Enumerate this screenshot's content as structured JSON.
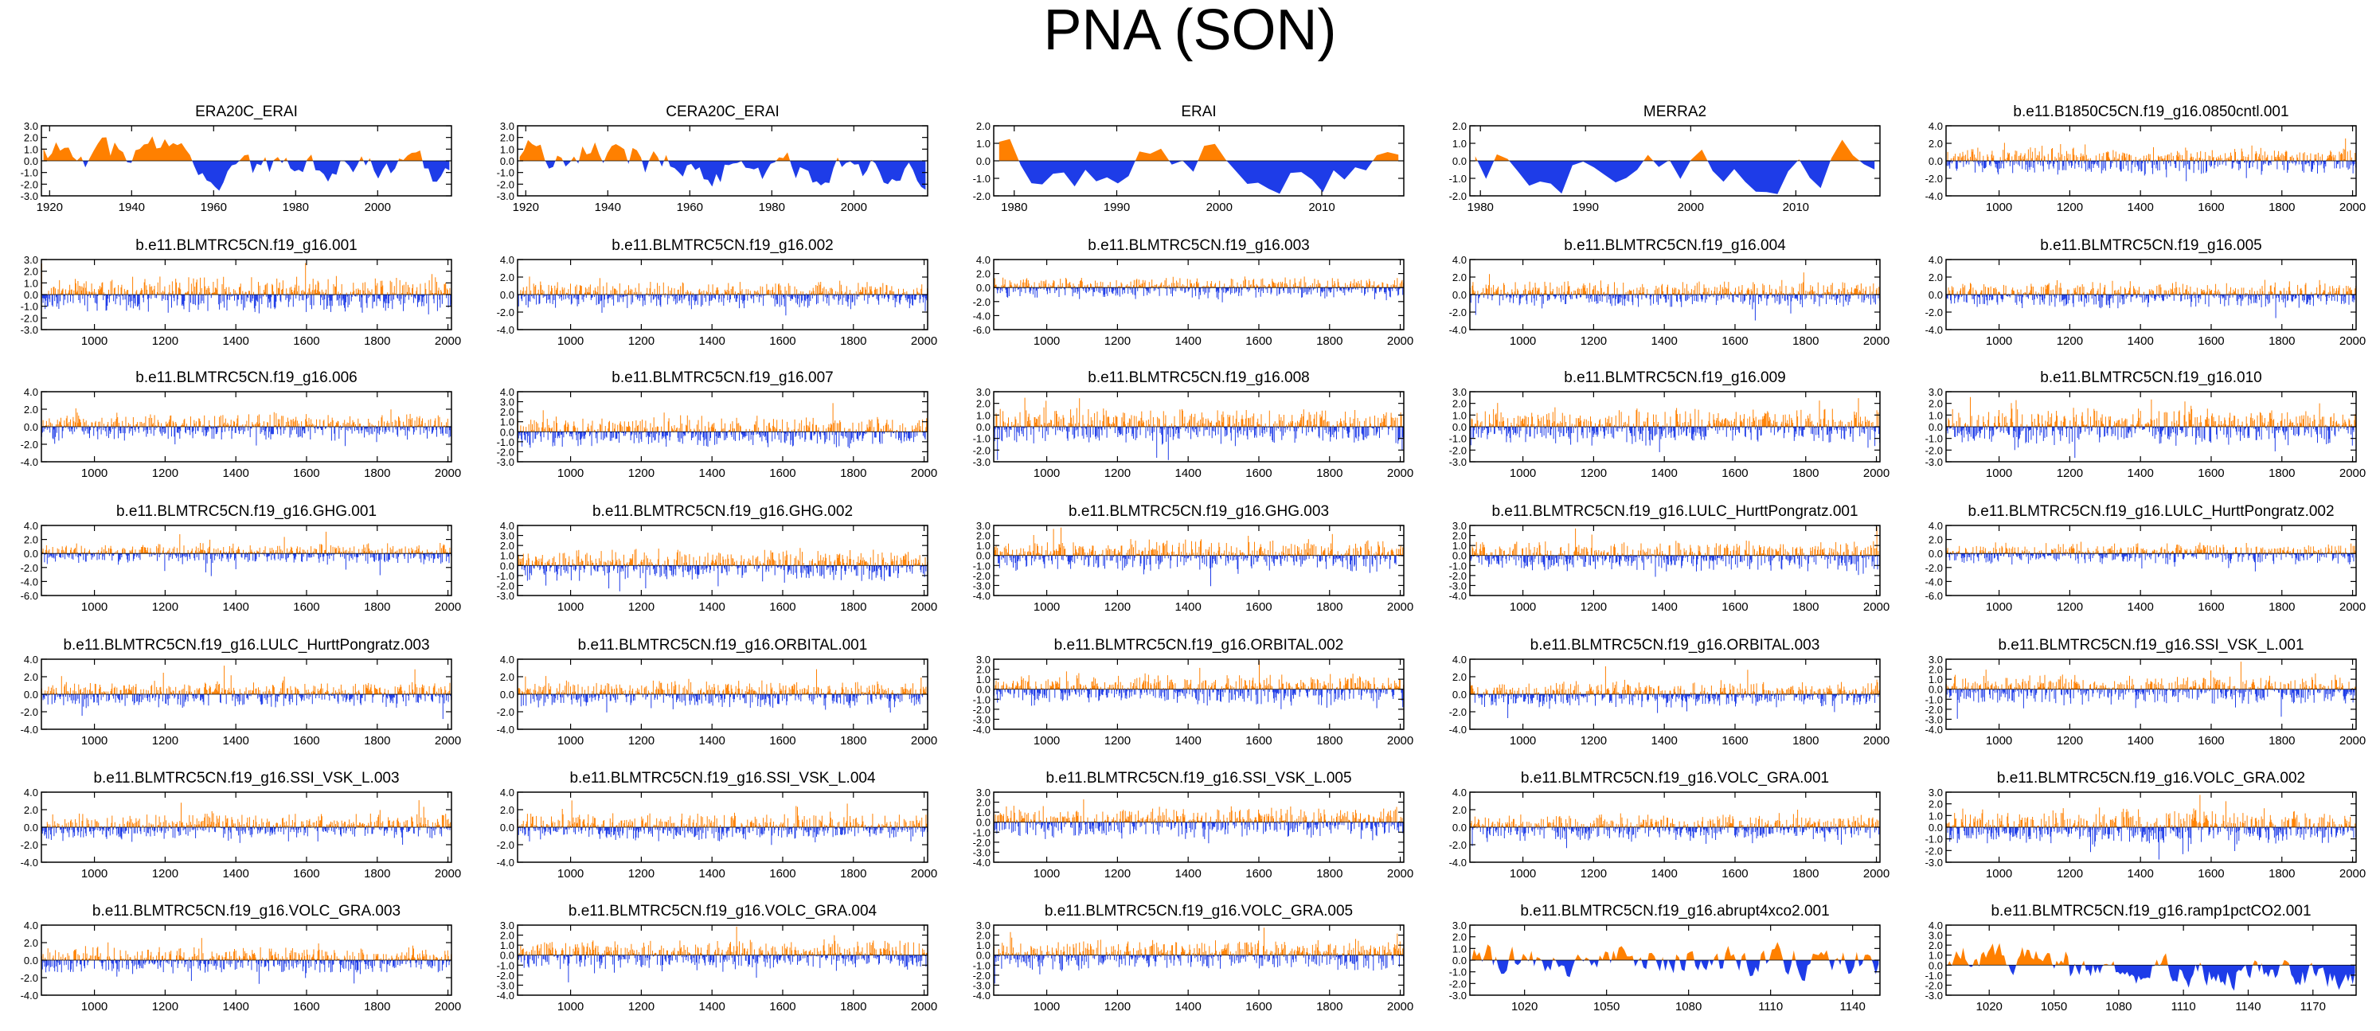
{
  "figure": {
    "title": "PNA (SON)",
    "colors": {
      "positive": "#ff8000",
      "negative": "#1e3ce8",
      "axis": "#000000",
      "zero_line": "#000000"
    }
  },
  "chart_data": [
    {
      "type": "area",
      "title": "ERA20C_ERAI",
      "xlim": [
        1918,
        2018
      ],
      "xticks": [
        1920,
        1940,
        1960,
        1980,
        2000
      ],
      "ylim": [
        -3,
        3
      ],
      "yticks": [
        "3.0",
        "2.0",
        "1.0",
        "0.0",
        "-1.0",
        "-2.0",
        "-3.0"
      ],
      "n_points": 98,
      "style": "smooth",
      "amplitude": 1.0,
      "trend": -1.4
    },
    {
      "type": "area",
      "title": "CERA20C_ERAI",
      "xlim": [
        1918,
        2018
      ],
      "xticks": [
        1920,
        1940,
        1960,
        1980,
        2000
      ],
      "ylim": [
        -3,
        3
      ],
      "yticks": [
        "3.0",
        "2.0",
        "1.0",
        "0.0",
        "-1.0",
        "-2.0",
        "-3.0"
      ],
      "n_points": 98,
      "style": "smooth",
      "amplitude": 1.0,
      "trend": -1.3
    },
    {
      "type": "area",
      "title": "ERAI",
      "xlim": [
        1978,
        2018
      ],
      "xticks": [
        1980,
        1990,
        2000,
        2010
      ],
      "ylim": [
        -2,
        2
      ],
      "yticks": [
        "2.0",
        "1.0",
        "0.0",
        "-1.0",
        "-2.0"
      ],
      "n_points": 38,
      "style": "smooth",
      "amplitude": 1.1,
      "trend": 0
    },
    {
      "type": "area",
      "title": "MERRA2",
      "xlim": [
        1979,
        2018
      ],
      "xticks": [
        1980,
        1990,
        2000,
        2010
      ],
      "ylim": [
        -2,
        2
      ],
      "yticks": [
        "2.0",
        "1.0",
        "0.0",
        "-1.0",
        "-2.0"
      ],
      "n_points": 38,
      "style": "smooth",
      "amplitude": 1.1,
      "trend": 0
    },
    {
      "type": "area",
      "title": "b.e11.B1850C5CN.f19_g16.0850cntl.001",
      "xlim": [
        850,
        2010
      ],
      "xticks": [
        1000,
        1200,
        1400,
        1600,
        1800,
        2000
      ],
      "ylim": [
        -4,
        4
      ],
      "yticks": [
        "4.0",
        "2.0",
        "0.0",
        "-2.0",
        "-4.0"
      ],
      "n_points": 600,
      "style": "dense",
      "amplitude": 1.0,
      "trend": 0
    },
    {
      "type": "area",
      "title": "b.e11.BLMTRC5CN.f19_g16.001",
      "xlim": [
        850,
        2010
      ],
      "xticks": [
        1000,
        1200,
        1400,
        1600,
        1800,
        2000
      ],
      "ylim": [
        -3,
        3
      ],
      "yticks": [
        "3.0",
        "2.0",
        "1.0",
        "0.0",
        "-1.0",
        "-2.0",
        "-3.0"
      ],
      "n_points": 600,
      "style": "dense",
      "amplitude": 1.0,
      "trend": 0
    },
    {
      "type": "area",
      "title": "b.e11.BLMTRC5CN.f19_g16.002",
      "xlim": [
        850,
        2010
      ],
      "xticks": [
        1000,
        1200,
        1400,
        1600,
        1800,
        2000
      ],
      "ylim": [
        -4,
        4
      ],
      "yticks": [
        "4.0",
        "2.0",
        "0.0",
        "-2.0",
        "-4.0"
      ],
      "n_points": 600,
      "style": "dense",
      "amplitude": 1.0,
      "trend": 0
    },
    {
      "type": "area",
      "title": "b.e11.BLMTRC5CN.f19_g16.003",
      "xlim": [
        850,
        2010
      ],
      "xticks": [
        1000,
        1200,
        1400,
        1600,
        1800,
        2000
      ],
      "ylim": [
        -6,
        4
      ],
      "yticks": [
        "4.0",
        "2.0",
        "0.0",
        "-2.0",
        "-4.0",
        "-6.0"
      ],
      "n_points": 600,
      "style": "dense",
      "amplitude": 1.0,
      "trend": 0
    },
    {
      "type": "area",
      "title": "b.e11.BLMTRC5CN.f19_g16.004",
      "xlim": [
        850,
        2010
      ],
      "xticks": [
        1000,
        1200,
        1400,
        1600,
        1800,
        2000
      ],
      "ylim": [
        -4,
        4
      ],
      "yticks": [
        "4.0",
        "2.0",
        "0.0",
        "-2.0",
        "-4.0"
      ],
      "n_points": 600,
      "style": "dense",
      "amplitude": 1.0,
      "trend": 0
    },
    {
      "type": "area",
      "title": "b.e11.BLMTRC5CN.f19_g16.005",
      "xlim": [
        850,
        2010
      ],
      "xticks": [
        1000,
        1200,
        1400,
        1600,
        1800,
        2000
      ],
      "ylim": [
        -4,
        4
      ],
      "yticks": [
        "4.0",
        "2.0",
        "0.0",
        "-2.0",
        "-4.0"
      ],
      "n_points": 600,
      "style": "dense",
      "amplitude": 1.0,
      "trend": 0
    },
    {
      "type": "area",
      "title": "b.e11.BLMTRC5CN.f19_g16.006",
      "xlim": [
        850,
        2010
      ],
      "xticks": [
        1000,
        1200,
        1400,
        1600,
        1800,
        2000
      ],
      "ylim": [
        -4,
        4
      ],
      "yticks": [
        "4.0",
        "2.0",
        "0.0",
        "-2.0",
        "-4.0"
      ],
      "n_points": 600,
      "style": "dense",
      "amplitude": 1.0,
      "trend": 0
    },
    {
      "type": "area",
      "title": "b.e11.BLMTRC5CN.f19_g16.007",
      "xlim": [
        850,
        2010
      ],
      "xticks": [
        1000,
        1200,
        1400,
        1600,
        1800,
        2000
      ],
      "ylim": [
        -3,
        4
      ],
      "yticks": [
        "4.0",
        "3.0",
        "2.0",
        "1.0",
        "0.0",
        "-1.0",
        "-2.0",
        "-3.0"
      ],
      "n_points": 600,
      "style": "dense",
      "amplitude": 1.0,
      "trend": 0
    },
    {
      "type": "area",
      "title": "b.e11.BLMTRC5CN.f19_g16.008",
      "xlim": [
        850,
        2010
      ],
      "xticks": [
        1000,
        1200,
        1400,
        1600,
        1800,
        2000
      ],
      "ylim": [
        -3,
        3
      ],
      "yticks": [
        "3.0",
        "2.0",
        "1.0",
        "0.0",
        "-1.0",
        "-2.0",
        "-3.0"
      ],
      "n_points": 600,
      "style": "dense",
      "amplitude": 1.0,
      "trend": 0
    },
    {
      "type": "area",
      "title": "b.e11.BLMTRC5CN.f19_g16.009",
      "xlim": [
        850,
        2010
      ],
      "xticks": [
        1000,
        1200,
        1400,
        1600,
        1800,
        2000
      ],
      "ylim": [
        -3,
        3
      ],
      "yticks": [
        "3.0",
        "2.0",
        "1.0",
        "0.0",
        "-1.0",
        "-2.0",
        "-3.0"
      ],
      "n_points": 600,
      "style": "dense",
      "amplitude": 1.0,
      "trend": 0
    },
    {
      "type": "area",
      "title": "b.e11.BLMTRC5CN.f19_g16.010",
      "xlim": [
        850,
        2010
      ],
      "xticks": [
        1000,
        1200,
        1400,
        1600,
        1800,
        2000
      ],
      "ylim": [
        -3,
        3
      ],
      "yticks": [
        "3.0",
        "2.0",
        "1.0",
        "0.0",
        "-1.0",
        "-2.0",
        "-3.0"
      ],
      "n_points": 600,
      "style": "dense",
      "amplitude": 1.0,
      "trend": 0
    },
    {
      "type": "area",
      "title": "b.e11.BLMTRC5CN.f19_g16.GHG.001",
      "xlim": [
        850,
        2010
      ],
      "xticks": [
        1000,
        1200,
        1400,
        1600,
        1800,
        2000
      ],
      "ylim": [
        -6,
        4
      ],
      "yticks": [
        "4.0",
        "2.0",
        "0.0",
        "-2.0",
        "-4.0",
        "-6.0"
      ],
      "n_points": 600,
      "style": "dense",
      "amplitude": 1.0,
      "trend": 0
    },
    {
      "type": "area",
      "title": "b.e11.BLMTRC5CN.f19_g16.GHG.002",
      "xlim": [
        850,
        2010
      ],
      "xticks": [
        1000,
        1200,
        1400,
        1600,
        1800,
        2000
      ],
      "ylim": [
        -3,
        4
      ],
      "yticks": [
        "4.0",
        "3.0",
        "2.0",
        "1.0",
        "0.0",
        "-1.0",
        "-2.0",
        "-3.0"
      ],
      "n_points": 600,
      "style": "dense",
      "amplitude": 1.0,
      "trend": 0
    },
    {
      "type": "area",
      "title": "b.e11.BLMTRC5CN.f19_g16.GHG.003",
      "xlim": [
        850,
        2010
      ],
      "xticks": [
        1000,
        1200,
        1400,
        1600,
        1800,
        2000
      ],
      "ylim": [
        -4,
        3
      ],
      "yticks": [
        "3.0",
        "2.0",
        "1.0",
        "0.0",
        "-1.0",
        "-2.0",
        "-3.0",
        "-4.0"
      ],
      "n_points": 600,
      "style": "dense",
      "amplitude": 1.0,
      "trend": 0
    },
    {
      "type": "area",
      "title": "b.e11.BLMTRC5CN.f19_g16.LULC_HurttPongratz.001",
      "xlim": [
        850,
        2010
      ],
      "xticks": [
        1000,
        1200,
        1400,
        1600,
        1800,
        2000
      ],
      "ylim": [
        -4,
        3
      ],
      "yticks": [
        "3.0",
        "2.0",
        "1.0",
        "0.0",
        "-1.0",
        "-2.0",
        "-3.0",
        "-4.0"
      ],
      "n_points": 600,
      "style": "dense",
      "amplitude": 1.0,
      "trend": 0
    },
    {
      "type": "area",
      "title": "b.e11.BLMTRC5CN.f19_g16.LULC_HurttPongratz.002",
      "xlim": [
        850,
        2010
      ],
      "xticks": [
        1000,
        1200,
        1400,
        1600,
        1800,
        2000
      ],
      "ylim": [
        -6,
        4
      ],
      "yticks": [
        "4.0",
        "2.0",
        "0.0",
        "-2.0",
        "-4.0",
        "-6.0"
      ],
      "n_points": 600,
      "style": "dense",
      "amplitude": 1.0,
      "trend": 0
    },
    {
      "type": "area",
      "title": "b.e11.BLMTRC5CN.f19_g16.LULC_HurttPongratz.003",
      "xlim": [
        850,
        2010
      ],
      "xticks": [
        1000,
        1200,
        1400,
        1600,
        1800,
        2000
      ],
      "ylim": [
        -4,
        4
      ],
      "yticks": [
        "4.0",
        "2.0",
        "0.0",
        "-2.0",
        "-4.0"
      ],
      "n_points": 600,
      "style": "dense",
      "amplitude": 1.0,
      "trend": 0
    },
    {
      "type": "area",
      "title": "b.e11.BLMTRC5CN.f19_g16.ORBITAL.001",
      "xlim": [
        850,
        2010
      ],
      "xticks": [
        1000,
        1200,
        1400,
        1600,
        1800,
        2000
      ],
      "ylim": [
        -4,
        4
      ],
      "yticks": [
        "4.0",
        "2.0",
        "0.0",
        "-2.0",
        "-4.0"
      ],
      "n_points": 600,
      "style": "dense",
      "amplitude": 1.0,
      "trend": 0
    },
    {
      "type": "area",
      "title": "b.e11.BLMTRC5CN.f19_g16.ORBITAL.002",
      "xlim": [
        850,
        2010
      ],
      "xticks": [
        1000,
        1200,
        1400,
        1600,
        1800,
        2000
      ],
      "ylim": [
        -4,
        3
      ],
      "yticks": [
        "3.0",
        "2.0",
        "1.0",
        "0.0",
        "-1.0",
        "-2.0",
        "-3.0",
        "-4.0"
      ],
      "n_points": 600,
      "style": "dense",
      "amplitude": 1.0,
      "trend": 0
    },
    {
      "type": "area",
      "title": "b.e11.BLMTRC5CN.f19_g16.ORBITAL.003",
      "xlim": [
        850,
        2010
      ],
      "xticks": [
        1000,
        1200,
        1400,
        1600,
        1800,
        2000
      ],
      "ylim": [
        -4,
        4
      ],
      "yticks": [
        "4.0",
        "2.0",
        "0.0",
        "-2.0",
        "-4.0"
      ],
      "n_points": 600,
      "style": "dense",
      "amplitude": 1.0,
      "trend": 0
    },
    {
      "type": "area",
      "title": "b.e11.BLMTRC5CN.f19_g16.SSI_VSK_L.001",
      "xlim": [
        850,
        2010
      ],
      "xticks": [
        1000,
        1200,
        1400,
        1600,
        1800,
        2000
      ],
      "ylim": [
        -4,
        3
      ],
      "yticks": [
        "3.0",
        "2.0",
        "1.0",
        "0.0",
        "-1.0",
        "-2.0",
        "-3.0",
        "-4.0"
      ],
      "n_points": 600,
      "style": "dense",
      "amplitude": 1.0,
      "trend": 0
    },
    {
      "type": "area",
      "title": "b.e11.BLMTRC5CN.f19_g16.SSI_VSK_L.003",
      "xlim": [
        850,
        2010
      ],
      "xticks": [
        1000,
        1200,
        1400,
        1600,
        1800,
        2000
      ],
      "ylim": [
        -4,
        4
      ],
      "yticks": [
        "4.0",
        "2.0",
        "0.0",
        "-2.0",
        "-4.0"
      ],
      "n_points": 600,
      "style": "dense",
      "amplitude": 1.0,
      "trend": 0
    },
    {
      "type": "area",
      "title": "b.e11.BLMTRC5CN.f19_g16.SSI_VSK_L.004",
      "xlim": [
        850,
        2010
      ],
      "xticks": [
        1000,
        1200,
        1400,
        1600,
        1800,
        2000
      ],
      "ylim": [
        -4,
        4
      ],
      "yticks": [
        "4.0",
        "2.0",
        "0.0",
        "-2.0",
        "-4.0"
      ],
      "n_points": 600,
      "style": "dense",
      "amplitude": 1.0,
      "trend": 0
    },
    {
      "type": "area",
      "title": "b.e11.BLMTRC5CN.f19_g16.SSI_VSK_L.005",
      "xlim": [
        850,
        2010
      ],
      "xticks": [
        1000,
        1200,
        1400,
        1600,
        1800,
        2000
      ],
      "ylim": [
        -4,
        3
      ],
      "yticks": [
        "3.0",
        "2.0",
        "1.0",
        "0.0",
        "-1.0",
        "-2.0",
        "-3.0",
        "-4.0"
      ],
      "n_points": 600,
      "style": "dense",
      "amplitude": 1.0,
      "trend": 0
    },
    {
      "type": "area",
      "title": "b.e11.BLMTRC5CN.f19_g16.VOLC_GRA.001",
      "xlim": [
        850,
        2010
      ],
      "xticks": [
        1000,
        1200,
        1400,
        1600,
        1800,
        2000
      ],
      "ylim": [
        -4,
        4
      ],
      "yticks": [
        "4.0",
        "2.0",
        "0.0",
        "-2.0",
        "-4.0"
      ],
      "n_points": 600,
      "style": "dense",
      "amplitude": 1.0,
      "trend": 0
    },
    {
      "type": "area",
      "title": "b.e11.BLMTRC5CN.f19_g16.VOLC_GRA.002",
      "xlim": [
        850,
        2010
      ],
      "xticks": [
        1000,
        1200,
        1400,
        1600,
        1800,
        2000
      ],
      "ylim": [
        -3,
        3
      ],
      "yticks": [
        "3.0",
        "2.0",
        "1.0",
        "0.0",
        "-1.0",
        "-2.0",
        "-3.0"
      ],
      "n_points": 600,
      "style": "dense",
      "amplitude": 1.0,
      "trend": 0
    },
    {
      "type": "area",
      "title": "b.e11.BLMTRC5CN.f19_g16.VOLC_GRA.003",
      "xlim": [
        850,
        2010
      ],
      "xticks": [
        1000,
        1200,
        1400,
        1600,
        1800,
        2000
      ],
      "ylim": [
        -4,
        4
      ],
      "yticks": [
        "4.0",
        "2.0",
        "0.0",
        "-2.0",
        "-4.0"
      ],
      "n_points": 600,
      "style": "dense",
      "amplitude": 1.0,
      "trend": 0
    },
    {
      "type": "area",
      "title": "b.e11.BLMTRC5CN.f19_g16.VOLC_GRA.004",
      "xlim": [
        850,
        2010
      ],
      "xticks": [
        1000,
        1200,
        1400,
        1600,
        1800,
        2000
      ],
      "ylim": [
        -4,
        3
      ],
      "yticks": [
        "3.0",
        "2.0",
        "1.0",
        "0.0",
        "-1.0",
        "-2.0",
        "-3.0",
        "-4.0"
      ],
      "n_points": 600,
      "style": "dense",
      "amplitude": 1.0,
      "trend": 0
    },
    {
      "type": "area",
      "title": "b.e11.BLMTRC5CN.f19_g16.VOLC_GRA.005",
      "xlim": [
        850,
        2010
      ],
      "xticks": [
        1000,
        1200,
        1400,
        1600,
        1800,
        2000
      ],
      "ylim": [
        -4,
        3
      ],
      "yticks": [
        "3.0",
        "2.0",
        "1.0",
        "0.0",
        "-1.0",
        "-2.0",
        "-3.0",
        "-4.0"
      ],
      "n_points": 600,
      "style": "dense",
      "amplitude": 1.0,
      "trend": 0
    },
    {
      "type": "area",
      "title": "b.e11.BLMTRC5CN.f19_g16.abrupt4xco2.001",
      "xlim": [
        1000,
        1150
      ],
      "xticks": [
        1020,
        1050,
        1080,
        1110,
        1140
      ],
      "ylim": [
        -3,
        3
      ],
      "yticks": [
        "3.0",
        "2.0",
        "1.0",
        "0.0",
        "-1.0",
        "-2.0",
        "-3.0"
      ],
      "n_points": 150,
      "style": "smooth",
      "amplitude": 1.0,
      "trend": 0
    },
    {
      "type": "area",
      "title": "b.e11.BLMTRC5CN.f19_g16.ramp1pctCO2.001",
      "xlim": [
        1000,
        1190
      ],
      "xticks": [
        1020,
        1050,
        1080,
        1110,
        1140,
        1170
      ],
      "ylim": [
        -3,
        4
      ],
      "yticks": [
        "4.0",
        "3.0",
        "2.0",
        "1.0",
        "0.0",
        "-1.0",
        "-2.0",
        "-3.0"
      ],
      "n_points": 180,
      "style": "smooth",
      "amplitude": 1.0,
      "trend": -1.4
    }
  ]
}
